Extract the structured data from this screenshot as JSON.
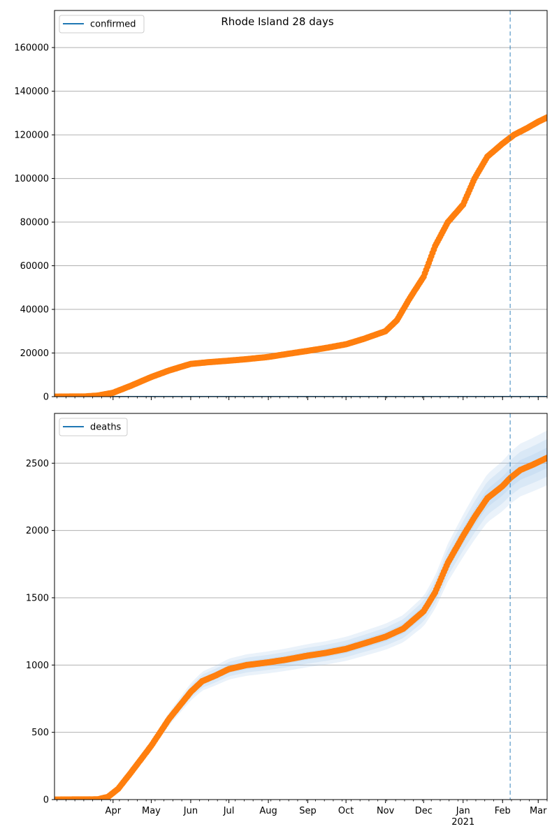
{
  "title": "Rhode Island 28 days",
  "colors": {
    "observed": "#ff7f0e",
    "model": "#1f77b4",
    "band": "#9ec3e6",
    "grid": "#b0b0b0",
    "forecast_line": "#1f77b4"
  },
  "forecast_start": "2021-02-07",
  "chart_data": [
    {
      "type": "scatter",
      "name": "confirmed-panel",
      "legend": "confirmed",
      "legend_position": "top-left",
      "grid": true,
      "xlim": [
        "2020-02-15",
        "2021-03-08"
      ],
      "ylim": [
        0,
        177000
      ],
      "yticks": [
        0,
        20000,
        40000,
        60000,
        80000,
        100000,
        120000,
        140000,
        160000
      ],
      "ytick_labels": [
        "0",
        "20000",
        "40000",
        "60000",
        "80000",
        "100000",
        "120000",
        "140000",
        "160000"
      ],
      "model_line": [
        [
          "2020-02-15",
          0
        ],
        [
          "2021-03-08",
          0
        ]
      ],
      "observed_anchors": [
        [
          "2020-02-15",
          0
        ],
        [
          "2020-03-10",
          100
        ],
        [
          "2020-03-20",
          500
        ],
        [
          "2020-04-01",
          1800
        ],
        [
          "2020-04-15",
          5000
        ],
        [
          "2020-05-01",
          9000
        ],
        [
          "2020-05-15",
          12000
        ],
        [
          "2020-06-01",
          15000
        ],
        [
          "2020-06-15",
          15800
        ],
        [
          "2020-07-01",
          16500
        ],
        [
          "2020-07-15",
          17200
        ],
        [
          "2020-08-01",
          18200
        ],
        [
          "2020-08-15",
          19500
        ],
        [
          "2020-09-01",
          21000
        ],
        [
          "2020-09-15",
          22300
        ],
        [
          "2020-10-01",
          24000
        ],
        [
          "2020-10-15",
          26500
        ],
        [
          "2020-11-01",
          30000
        ],
        [
          "2020-11-10",
          35000
        ],
        [
          "2020-11-20",
          45000
        ],
        [
          "2020-12-01",
          55000
        ],
        [
          "2020-12-10",
          69000
        ],
        [
          "2020-12-20",
          80000
        ],
        [
          "2021-01-01",
          88000
        ],
        [
          "2021-01-10",
          100000
        ],
        [
          "2021-01-20",
          110000
        ],
        [
          "2021-02-01",
          116000
        ],
        [
          "2021-02-10",
          120000
        ],
        [
          "2021-02-20",
          123000
        ],
        [
          "2021-03-01",
          126000
        ],
        [
          "2021-03-08",
          128000
        ]
      ],
      "bands": []
    },
    {
      "type": "scatter",
      "name": "deaths-panel",
      "legend": "deaths",
      "legend_position": "top-left",
      "grid": true,
      "xlim": [
        "2020-02-15",
        "2021-03-08"
      ],
      "ylim": [
        0,
        2870
      ],
      "yticks": [
        0,
        500,
        1000,
        1500,
        2000,
        2500
      ],
      "ytick_labels": [
        "0",
        "500",
        "1000",
        "1500",
        "2000",
        "2500"
      ],
      "model_line": [],
      "observed_anchors": [
        [
          "2020-02-15",
          0
        ],
        [
          "2020-03-20",
          2
        ],
        [
          "2020-03-28",
          20
        ],
        [
          "2020-04-05",
          80
        ],
        [
          "2020-04-15",
          200
        ],
        [
          "2020-05-01",
          400
        ],
        [
          "2020-05-15",
          600
        ],
        [
          "2020-06-01",
          800
        ],
        [
          "2020-06-10",
          880
        ],
        [
          "2020-06-20",
          920
        ],
        [
          "2020-07-01",
          970
        ],
        [
          "2020-07-15",
          1000
        ],
        [
          "2020-08-01",
          1020
        ],
        [
          "2020-08-15",
          1040
        ],
        [
          "2020-09-01",
          1070
        ],
        [
          "2020-09-15",
          1090
        ],
        [
          "2020-10-01",
          1120
        ],
        [
          "2020-10-15",
          1160
        ],
        [
          "2020-11-01",
          1210
        ],
        [
          "2020-11-15",
          1270
        ],
        [
          "2020-12-01",
          1400
        ],
        [
          "2020-12-10",
          1540
        ],
        [
          "2020-12-20",
          1760
        ],
        [
          "2021-01-01",
          1960
        ],
        [
          "2021-01-10",
          2100
        ],
        [
          "2021-01-20",
          2240
        ],
        [
          "2021-02-01",
          2330
        ],
        [
          "2021-02-07",
          2390
        ],
        [
          "2021-02-15",
          2450
        ],
        [
          "2021-02-25",
          2490
        ],
        [
          "2021-03-08",
          2540
        ]
      ],
      "bands": [
        {
          "spread": 0.08,
          "opacity": 0.22
        },
        {
          "spread": 0.055,
          "opacity": 0.22
        },
        {
          "spread": 0.03,
          "opacity": 0.22
        }
      ]
    }
  ],
  "x_axis": {
    "month_ticks": [
      "2020-04-01",
      "2020-05-01",
      "2020-06-01",
      "2020-07-01",
      "2020-08-01",
      "2020-09-01",
      "2020-10-01",
      "2020-11-01",
      "2020-12-01",
      "2021-01-01",
      "2021-02-01",
      "2021-03-01"
    ],
    "month_labels": [
      "Apr",
      "May",
      "Jun",
      "Jul",
      "Aug",
      "Sep",
      "Oct",
      "Nov",
      "Dec",
      "Jan",
      "Feb",
      "Mar"
    ],
    "year_label": "2021",
    "year_label_under": "Jan"
  }
}
